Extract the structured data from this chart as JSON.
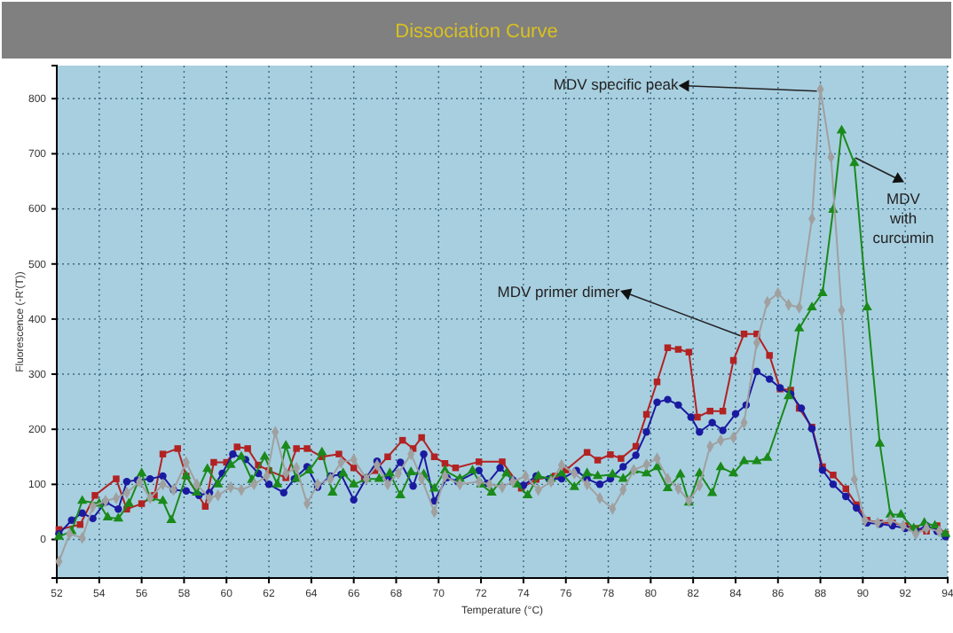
{
  "chart_data": {
    "type": "line",
    "title": "Dissociation Curve",
    "xlabel": "Temperature (°C)",
    "ylabel": "Fluorescence (-R'(T))",
    "xlim": [
      52,
      94
    ],
    "xticks": [
      52,
      54,
      56,
      58,
      60,
      62,
      64,
      66,
      68,
      70,
      72,
      74,
      76,
      78,
      80,
      82,
      84,
      86,
      88,
      90,
      92,
      94
    ],
    "ylim": [
      -70,
      860
    ],
    "yticks": [
      0,
      100,
      200,
      300,
      400,
      500,
      600,
      700,
      800
    ],
    "grid": true,
    "line_style": "solid",
    "annotations": [
      {
        "text": "MDV specific peak",
        "x": 88,
        "y": 817
      },
      "MDV with curcumin",
      {
        "text": "MDV primer dimer",
        "x": 84.4,
        "y": 373
      }
    ],
    "series": [
      {
        "color": "#b22222",
        "marker": "square",
        "x": [
          52.1,
          53.1,
          53.8,
          54.8,
          55.3,
          56.0,
          56.6,
          57.0,
          57.7,
          58.1,
          59.0,
          59.4,
          60.0,
          60.5,
          61.0,
          61.5,
          62.0,
          62.8,
          63.3,
          63.8,
          64.5,
          65.3,
          66.0,
          66.5,
          67.0,
          67.6,
          68.3,
          68.8,
          69.2,
          69.8,
          70.3,
          70.8,
          71.9,
          73.0,
          73.9,
          74.6,
          75.5,
          76.0,
          77.0,
          77.5,
          78.1,
          78.6,
          79.3,
          79.8,
          80.3,
          80.8,
          81.3,
          81.8,
          82.2,
          82.8,
          83.4,
          83.9,
          84.4,
          85.0,
          85.6,
          86.1,
          86.6,
          87.0,
          87.6,
          88.1,
          88.6,
          89.2,
          89.7,
          90.2,
          90.8,
          91.4,
          92.0,
          92.5,
          93.0,
          93.5,
          93.9
        ],
        "values": [
          18,
          27,
          80,
          110,
          55,
          65,
          80,
          155,
          165,
          115,
          60,
          140,
          140,
          168,
          165,
          135,
          125,
          112,
          165,
          165,
          150,
          155,
          130,
          110,
          125,
          150,
          180,
          165,
          185,
          150,
          138,
          130,
          141,
          141,
          93,
          109,
          115,
          126,
          158,
          144,
          154,
          147,
          169,
          227,
          286,
          348,
          345,
          340,
          222,
          233,
          233,
          325,
          373,
          373,
          334,
          273,
          271,
          238,
          204,
          132,
          117,
          92,
          63,
          35,
          30,
          30,
          25,
          20,
          15,
          25,
          10
        ]
      },
      {
        "color": "#1a1aa0",
        "marker": "circle",
        "x": [
          52.1,
          52.7,
          53.2,
          53.7,
          54.3,
          54.9,
          55.3,
          55.8,
          56.4,
          57.0,
          57.5,
          58.1,
          58.7,
          59.2,
          59.8,
          60.3,
          60.9,
          61.5,
          62.0,
          62.7,
          63.2,
          63.8,
          64.3,
          64.9,
          65.4,
          66.0,
          66.6,
          67.1,
          67.6,
          68.2,
          68.8,
          69.3,
          69.8,
          70.4,
          70.9,
          71.9,
          72.3,
          72.9,
          73.5,
          74.0,
          74.6,
          75.2,
          75.8,
          76.5,
          77.0,
          77.6,
          78.1,
          78.7,
          79.3,
          79.8,
          80.3,
          80.8,
          81.3,
          81.9,
          82.3,
          82.9,
          83.4,
          84.0,
          84.5,
          85.0,
          85.6,
          86.1,
          86.6,
          87.1,
          87.6,
          88.1,
          88.6,
          89.2,
          89.7,
          90.2,
          90.8,
          91.4,
          92.0,
          92.5,
          93.0,
          93.5,
          93.9
        ],
        "values": [
          10,
          35,
          48,
          38,
          68,
          55,
          105,
          108,
          110,
          115,
          90,
          88,
          80,
          85,
          120,
          155,
          145,
          120,
          100,
          85,
          110,
          132,
          95,
          115,
          118,
          72,
          112,
          142,
          110,
          140,
          97,
          155,
          70,
          112,
          105,
          125,
          102,
          130,
          108,
          98,
          115,
          110,
          110,
          125,
          110,
          100,
          110,
          132,
          153,
          195,
          249,
          254,
          244,
          222,
          195,
          212,
          198,
          228,
          244,
          305,
          291,
          275,
          264,
          238,
          201,
          126,
          100,
          78,
          57,
          30,
          28,
          25,
          20,
          15,
          25,
          15,
          5
        ]
      },
      {
        "color": "#1a8a1a",
        "marker": "triangle",
        "x": [
          52.1,
          52.7,
          53.2,
          54.0,
          54.4,
          54.9,
          55.4,
          56.0,
          56.4,
          57.0,
          57.4,
          58.1,
          58.6,
          59.1,
          59.6,
          60.2,
          60.7,
          61.2,
          61.8,
          62.4,
          62.8,
          63.3,
          63.9,
          64.5,
          65.0,
          65.5,
          66.0,
          66.6,
          67.2,
          67.7,
          68.2,
          68.7,
          69.3,
          69.8,
          70.3,
          71.0,
          71.6,
          72.0,
          72.5,
          73.2,
          73.7,
          74.2,
          74.7,
          75.3,
          75.8,
          76.4,
          77.0,
          77.5,
          78.2,
          78.7,
          79.2,
          79.8,
          80.3,
          80.8,
          81.4,
          81.8,
          82.3,
          82.9,
          83.3,
          83.9,
          84.4,
          85.0,
          85.5,
          86.5,
          87.0,
          87.6,
          88.1,
          88.6,
          89.0,
          89.6,
          90.2,
          90.8,
          91.3,
          91.8,
          92.4,
          92.9,
          93.4,
          93.9
        ],
        "values": [
          5,
          15,
          70,
          65,
          40,
          38,
          65,
          120,
          75,
          70,
          35,
          115,
          85,
          128,
          100,
          135,
          150,
          108,
          150,
          100,
          170,
          110,
          125,
          158,
          85,
          120,
          100,
          110,
          110,
          120,
          80,
          122,
          118,
          92,
          125,
          110,
          125,
          100,
          85,
          120,
          100,
          80,
          115,
          110,
          120,
          95,
          120,
          115,
          118,
          110,
          125,
          120,
          131,
          93,
          118,
          67,
          120,
          84,
          131,
          120,
          142,
          142,
          148,
          260,
          383,
          421,
          447,
          598,
          742,
          683,
          421,
          174,
          45,
          45,
          20,
          30,
          25,
          10
        ]
      },
      {
        "color": "#a0a0a0",
        "marker": "diamond",
        "x": [
          52.1,
          52.6,
          53.2,
          53.7,
          54.3,
          54.8,
          55.3,
          55.9,
          56.4,
          57.0,
          57.5,
          58.1,
          58.6,
          59.2,
          59.6,
          60.2,
          60.7,
          61.3,
          61.9,
          62.3,
          62.8,
          63.3,
          63.8,
          64.3,
          64.9,
          65.4,
          66.0,
          66.6,
          67.1,
          67.6,
          68.1,
          68.7,
          69.2,
          69.8,
          70.3,
          71.0,
          71.9,
          72.4,
          73.0,
          73.5,
          74.1,
          74.7,
          75.3,
          75.8,
          76.4,
          77.0,
          77.6,
          78.2,
          78.7,
          79.2,
          79.8,
          80.3,
          80.8,
          81.3,
          81.8,
          82.3,
          82.8,
          83.3,
          83.9,
          84.4,
          85.0,
          85.5,
          86.0,
          86.5,
          87.0,
          87.6,
          88.0,
          88.5,
          89.0,
          89.6,
          90.1,
          90.7,
          91.3,
          91.9,
          92.5,
          93.0,
          93.6
        ],
        "values": [
          -40,
          10,
          3,
          60,
          70,
          75,
          85,
          105,
          75,
          100,
          90,
          140,
          100,
          75,
          80,
          95,
          90,
          100,
          115,
          195,
          120,
          130,
          65,
          100,
          110,
          140,
          145,
          110,
          135,
          100,
          120,
          155,
          110,
          50,
          115,
          100,
          105,
          100,
          95,
          105,
          115,
          90,
          105,
          135,
          120,
          100,
          75,
          56,
          90,
          126,
          136,
          147,
          110,
          92,
          70,
          98,
          169,
          180,
          185,
          212,
          357,
          431,
          447,
          426,
          421,
          582,
          817,
          694,
          416,
          109,
          35,
          30,
          35,
          25,
          10,
          20,
          15
        ]
      }
    ]
  }
}
